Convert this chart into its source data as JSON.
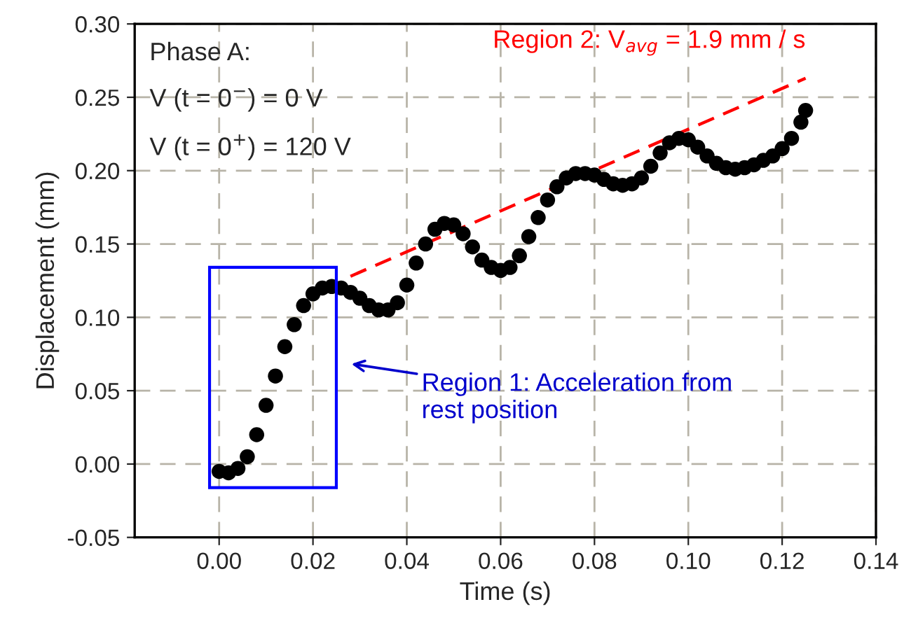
{
  "chart_data": {
    "type": "scatter",
    "xlabel": "Time (s)",
    "ylabel": "Displacement (mm)",
    "xlim": [
      -0.018,
      0.14
    ],
    "ylim": [
      -0.05,
      0.3
    ],
    "xticks": [
      {
        "value": 0,
        "label": "0.00"
      },
      {
        "value": 0.02,
        "label": "0.02"
      },
      {
        "value": 0.04,
        "label": "0.04"
      },
      {
        "value": 0.06,
        "label": "0.06"
      },
      {
        "value": 0.08,
        "label": "0.08"
      },
      {
        "value": 0.1,
        "label": "0.10"
      },
      {
        "value": 0.12,
        "label": "0.12"
      },
      {
        "value": 0.14,
        "label": "0.14"
      }
    ],
    "yticks": [
      {
        "value": -0.05,
        "label": "-0.05"
      },
      {
        "value": 0,
        "label": "0.00"
      },
      {
        "value": 0.05,
        "label": "0.05"
      },
      {
        "value": 0.1,
        "label": "0.10"
      },
      {
        "value": 0.15,
        "label": "0.15"
      },
      {
        "value": 0.2,
        "label": "0.20"
      },
      {
        "value": 0.25,
        "label": "0.25"
      },
      {
        "value": 0.3,
        "label": "0.30"
      }
    ],
    "grid": true,
    "legend": false,
    "marker": "circle",
    "x": [
      0,
      0.002,
      0.004,
      0.006,
      0.008,
      0.01,
      0.012,
      0.014,
      0.016,
      0.018,
      0.02,
      0.022,
      0.024,
      0.026,
      0.028,
      0.03,
      0.032,
      0.034,
      0.036,
      0.038,
      0.04,
      0.042,
      0.044,
      0.046,
      0.048,
      0.05,
      0.052,
      0.054,
      0.056,
      0.058,
      0.06,
      0.062,
      0.064,
      0.066,
      0.068,
      0.07,
      0.072,
      0.074,
      0.076,
      0.078,
      0.08,
      0.082,
      0.084,
      0.086,
      0.088,
      0.09,
      0.092,
      0.094,
      0.096,
      0.098,
      0.1,
      0.102,
      0.104,
      0.106,
      0.108,
      0.11,
      0.112,
      0.114,
      0.116,
      0.118,
      0.12,
      0.122,
      0.124,
      0.125
    ],
    "series": [
      {
        "color": "#000000",
        "values": [
          -0.005,
          -0.006,
          -0.003,
          0.005,
          0.02,
          0.04,
          0.06,
          0.08,
          0.095,
          0.108,
          0.116,
          0.12,
          0.121,
          0.12,
          0.117,
          0.113,
          0.108,
          0.105,
          0.105,
          0.11,
          0.122,
          0.137,
          0.15,
          0.16,
          0.164,
          0.163,
          0.157,
          0.148,
          0.139,
          0.134,
          0.132,
          0.134,
          0.142,
          0.155,
          0.168,
          0.18,
          0.189,
          0.195,
          0.198,
          0.198,
          0.197,
          0.194,
          0.191,
          0.19,
          0.191,
          0.195,
          0.203,
          0.212,
          0.219,
          0.222,
          0.221,
          0.216,
          0.21,
          0.205,
          0.202,
          0.201,
          0.202,
          0.204,
          0.207,
          0.21,
          0.215,
          0.222,
          0.233,
          0.241
        ]
      },
      {
        "type": "line",
        "name": "Region 2: V$_{avg}$ = 1.9 mm / s",
        "color": "#ff0000",
        "line_style": "dashed",
        "marker": "none",
        "x": [
          0.028,
          0.125
        ],
        "values": [
          0.128,
          0.263
        ]
      }
    ],
    "annotations": [
      "Phase A:",
      "V (t = 0$^{−}$) = 0 V",
      "V (t = 0$^{+}$) = 120 V",
      "Region 1: Acceleration from\nrest position"
    ]
  }
}
